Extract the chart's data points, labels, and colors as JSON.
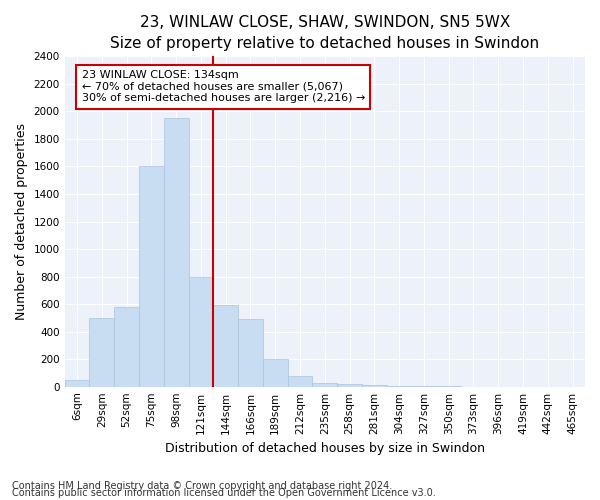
{
  "title": "23, WINLAW CLOSE, SHAW, SWINDON, SN5 5WX",
  "subtitle": "Size of property relative to detached houses in Swindon",
  "xlabel": "Distribution of detached houses by size in Swindon",
  "ylabel": "Number of detached properties",
  "categories": [
    "6sqm",
    "29sqm",
    "52sqm",
    "75sqm",
    "98sqm",
    "121sqm",
    "144sqm",
    "166sqm",
    "189sqm",
    "212sqm",
    "235sqm",
    "258sqm",
    "281sqm",
    "304sqm",
    "327sqm",
    "350sqm",
    "373sqm",
    "396sqm",
    "419sqm",
    "442sqm",
    "465sqm"
  ],
  "values": [
    50,
    500,
    580,
    1600,
    1950,
    800,
    590,
    490,
    200,
    80,
    25,
    20,
    15,
    5,
    3,
    2,
    1,
    1,
    0,
    1,
    0
  ],
  "bar_color": "#c9ddf2",
  "bar_edge_color": "#a8c4e0",
  "bar_width": 1.0,
  "vline_x": 5.5,
  "vline_color": "#cc0000",
  "annotation_text": "23 WINLAW CLOSE: 134sqm\n← 70% of detached houses are smaller (5,067)\n30% of semi-detached houses are larger (2,216) →",
  "annotation_box_color": "#ffffff",
  "annotation_border_color": "#cc0000",
  "ylim": [
    0,
    2400
  ],
  "yticks": [
    0,
    200,
    400,
    600,
    800,
    1000,
    1200,
    1400,
    1600,
    1800,
    2000,
    2200,
    2400
  ],
  "footer1": "Contains HM Land Registry data © Crown copyright and database right 2024.",
  "footer2": "Contains public sector information licensed under the Open Government Licence v3.0.",
  "bg_color": "#ffffff",
  "plot_bg_color": "#edf2fa",
  "title_fontsize": 11,
  "subtitle_fontsize": 10,
  "ylabel_fontsize": 9,
  "xlabel_fontsize": 9,
  "tick_fontsize": 7.5,
  "footer_fontsize": 7,
  "annot_fontsize": 8
}
